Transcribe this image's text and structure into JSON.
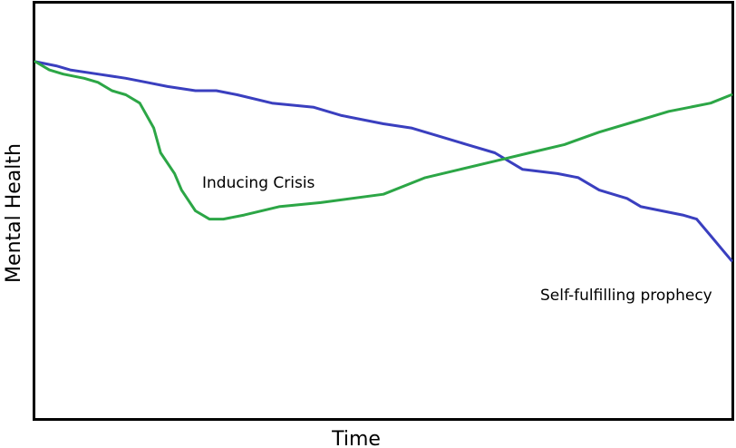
{
  "chart_data": {
    "type": "line",
    "title": "",
    "xlabel": "Time",
    "ylabel": "Mental Health",
    "xlim": [
      0,
      100
    ],
    "ylim": [
      0,
      100
    ],
    "grid": false,
    "legend": "none",
    "series": [
      {
        "color": "#3a3fbf",
        "points": [
          [
            0,
            86
          ],
          [
            3,
            85
          ],
          [
            5,
            84
          ],
          [
            9,
            83
          ],
          [
            13,
            82
          ],
          [
            16,
            81
          ],
          [
            19,
            80
          ],
          [
            23,
            79
          ],
          [
            26,
            79
          ],
          [
            29,
            78
          ],
          [
            34,
            76
          ],
          [
            40,
            75
          ],
          [
            44,
            73
          ],
          [
            50,
            71
          ],
          [
            54,
            70
          ],
          [
            58,
            68
          ],
          [
            62,
            66
          ],
          [
            66,
            64
          ],
          [
            70,
            60
          ],
          [
            75,
            59
          ],
          [
            78,
            58
          ],
          [
            81,
            55
          ],
          [
            83,
            54
          ],
          [
            85,
            53
          ],
          [
            87,
            51
          ],
          [
            90,
            50
          ],
          [
            93,
            49
          ],
          [
            95,
            48
          ],
          [
            97,
            44
          ],
          [
            99,
            40
          ],
          [
            100,
            38
          ]
        ]
      },
      {
        "color": "#2ca646",
        "points": [
          [
            0,
            86
          ],
          [
            2,
            84
          ],
          [
            4,
            83
          ],
          [
            7,
            82
          ],
          [
            9,
            81
          ],
          [
            11,
            79
          ],
          [
            13,
            78
          ],
          [
            15,
            76
          ],
          [
            17,
            70
          ],
          [
            18,
            64
          ],
          [
            20,
            59
          ],
          [
            21,
            55
          ],
          [
            23,
            50
          ],
          [
            25,
            48
          ],
          [
            27,
            48
          ],
          [
            30,
            49
          ],
          [
            35,
            51
          ],
          [
            41,
            52
          ],
          [
            50,
            54
          ],
          [
            56,
            58
          ],
          [
            61,
            60
          ],
          [
            66,
            62
          ],
          [
            71,
            64
          ],
          [
            76,
            66
          ],
          [
            81,
            69
          ],
          [
            87,
            72
          ],
          [
            91,
            74
          ],
          [
            94,
            75
          ],
          [
            97,
            76
          ],
          [
            100,
            78
          ]
        ]
      }
    ],
    "annotations": [
      {
        "text": "Inducing Crisis"
      },
      {
        "text": "Self-fulfilling prophecy"
      }
    ]
  }
}
